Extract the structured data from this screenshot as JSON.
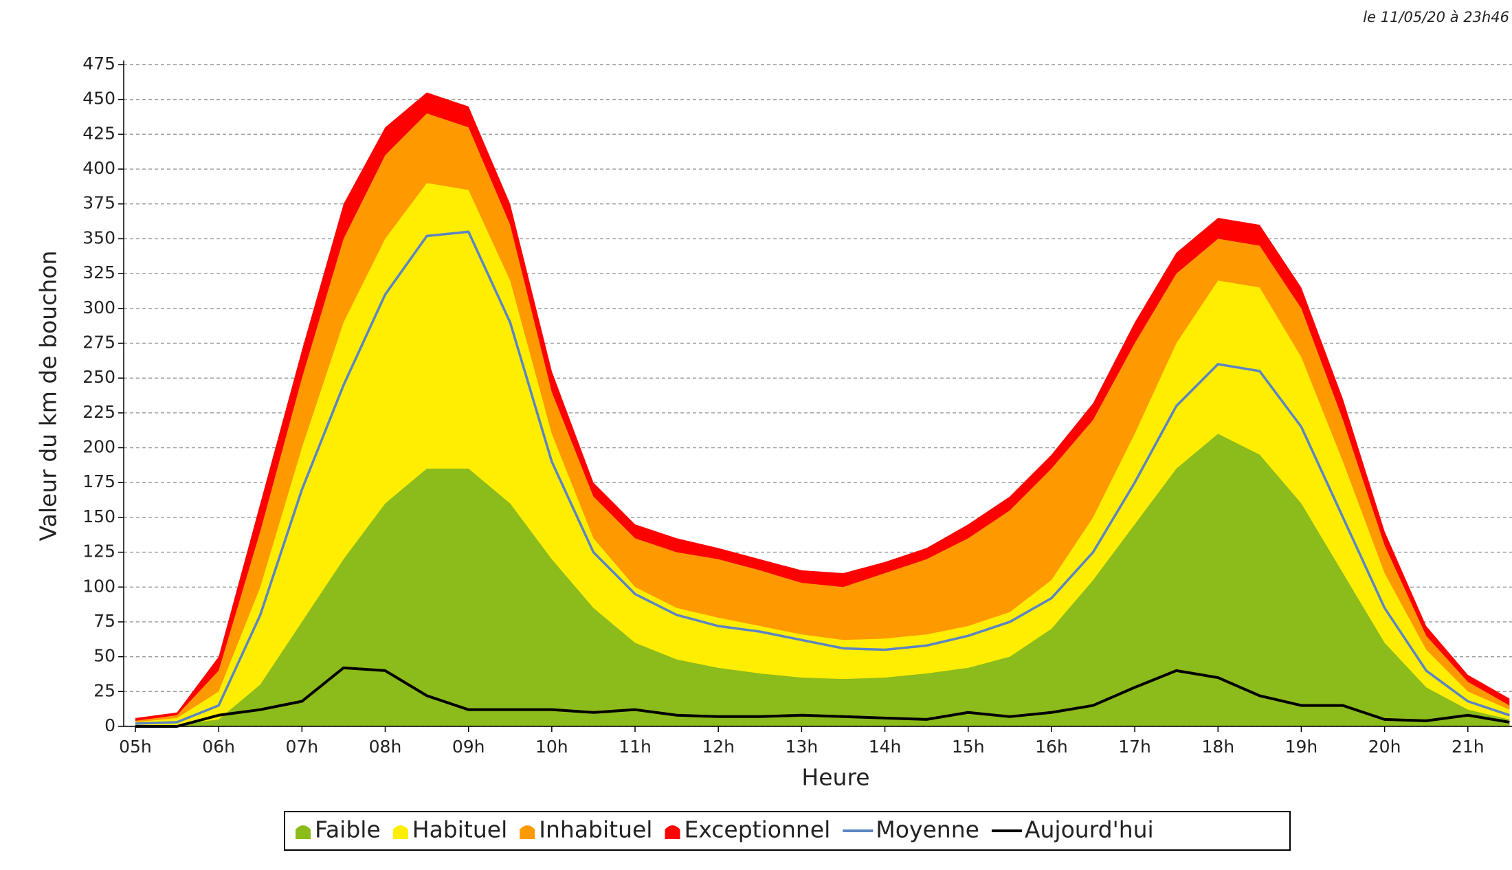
{
  "chart_data": {
    "type": "area",
    "subtitle": "le 11/05/20 à 23h46",
    "x_label": "Heure",
    "y_label": "Valeur du  km de bouchon",
    "x": [
      5,
      5.5,
      6,
      6.5,
      7,
      7.5,
      8,
      8.5,
      9,
      9.5,
      10,
      10.5,
      11,
      11.5,
      12,
      12.5,
      13,
      13.5,
      14,
      14.5,
      15,
      15.5,
      16,
      16.5,
      17,
      17.5,
      18,
      18.5,
      19,
      19.5,
      20,
      20.5,
      21,
      21.5
    ],
    "xlim": [
      4.86,
      21.53
    ],
    "xticks": [
      {
        "value": 5,
        "label": "05h"
      },
      {
        "value": 6,
        "label": "06h"
      },
      {
        "value": 7,
        "label": "07h"
      },
      {
        "value": 8,
        "label": "08h"
      },
      {
        "value": 9,
        "label": "09h"
      },
      {
        "value": 10,
        "label": "10h"
      },
      {
        "value": 11,
        "label": "11h"
      },
      {
        "value": 12,
        "label": "12h"
      },
      {
        "value": 13,
        "label": "13h"
      },
      {
        "value": 14,
        "label": "14h"
      },
      {
        "value": 15,
        "label": "15h"
      },
      {
        "value": 16,
        "label": "16h"
      },
      {
        "value": 17,
        "label": "17h"
      },
      {
        "value": 18,
        "label": "18h"
      },
      {
        "value": 19,
        "label": "19h"
      },
      {
        "value": 20,
        "label": "20h"
      },
      {
        "value": 21,
        "label": "21h"
      }
    ],
    "ylim": [
      0,
      475
    ],
    "yticks": [
      0,
      25,
      50,
      75,
      100,
      125,
      150,
      175,
      200,
      225,
      250,
      275,
      300,
      325,
      350,
      375,
      400,
      425,
      450,
      475
    ],
    "grid": true,
    "series": [
      {
        "name": "Faible",
        "style": "area",
        "color": "#8cbb1c",
        "values": [
          0,
          1,
          5,
          30,
          75,
          120,
          160,
          185,
          185,
          160,
          120,
          85,
          60,
          48,
          42,
          38,
          35,
          34,
          35,
          38,
          42,
          50,
          70,
          105,
          145,
          185,
          210,
          195,
          160,
          110,
          60,
          28,
          12,
          5
        ]
      },
      {
        "name": "Habituel",
        "style": "area",
        "color": "#ffee00",
        "values": [
          3,
          6,
          25,
          100,
          200,
          290,
          350,
          390,
          385,
          320,
          210,
          135,
          100,
          85,
          78,
          72,
          66,
          62,
          63,
          66,
          72,
          82,
          105,
          150,
          210,
          275,
          320,
          315,
          265,
          190,
          110,
          55,
          25,
          12
        ]
      },
      {
        "name": "Inhabituel",
        "style": "area",
        "color": "#ff9900",
        "values": [
          4,
          8,
          40,
          140,
          250,
          350,
          410,
          440,
          430,
          360,
          240,
          165,
          135,
          125,
          120,
          112,
          103,
          100,
          110,
          120,
          135,
          155,
          185,
          220,
          275,
          325,
          350,
          345,
          300,
          220,
          130,
          65,
          32,
          15
        ]
      },
      {
        "name": "Exceptionnel",
        "style": "area",
        "color": "#ff0000",
        "values": [
          6,
          10,
          50,
          160,
          270,
          375,
          430,
          455,
          445,
          375,
          255,
          175,
          145,
          135,
          128,
          120,
          112,
          110,
          118,
          128,
          145,
          165,
          195,
          232,
          290,
          340,
          365,
          360,
          315,
          235,
          140,
          72,
          37,
          20
        ]
      },
      {
        "name": "Moyenne",
        "style": "line",
        "color": "#5b84c4",
        "values": [
          2,
          3,
          15,
          80,
          170,
          245,
          310,
          352,
          355,
          290,
          190,
          125,
          95,
          80,
          72,
          68,
          62,
          56,
          55,
          58,
          65,
          75,
          92,
          125,
          175,
          230,
          260,
          255,
          215,
          150,
          85,
          40,
          18,
          8
        ]
      },
      {
        "name": "Aujourd'hui",
        "style": "line",
        "color": "#000000",
        "values": [
          0,
          0,
          8,
          12,
          18,
          42,
          40,
          22,
          12,
          12,
          12,
          10,
          12,
          8,
          7,
          7,
          8,
          7,
          6,
          5,
          10,
          7,
          10,
          15,
          28,
          40,
          35,
          22,
          15,
          15,
          5,
          4,
          8,
          3
        ]
      }
    ]
  }
}
